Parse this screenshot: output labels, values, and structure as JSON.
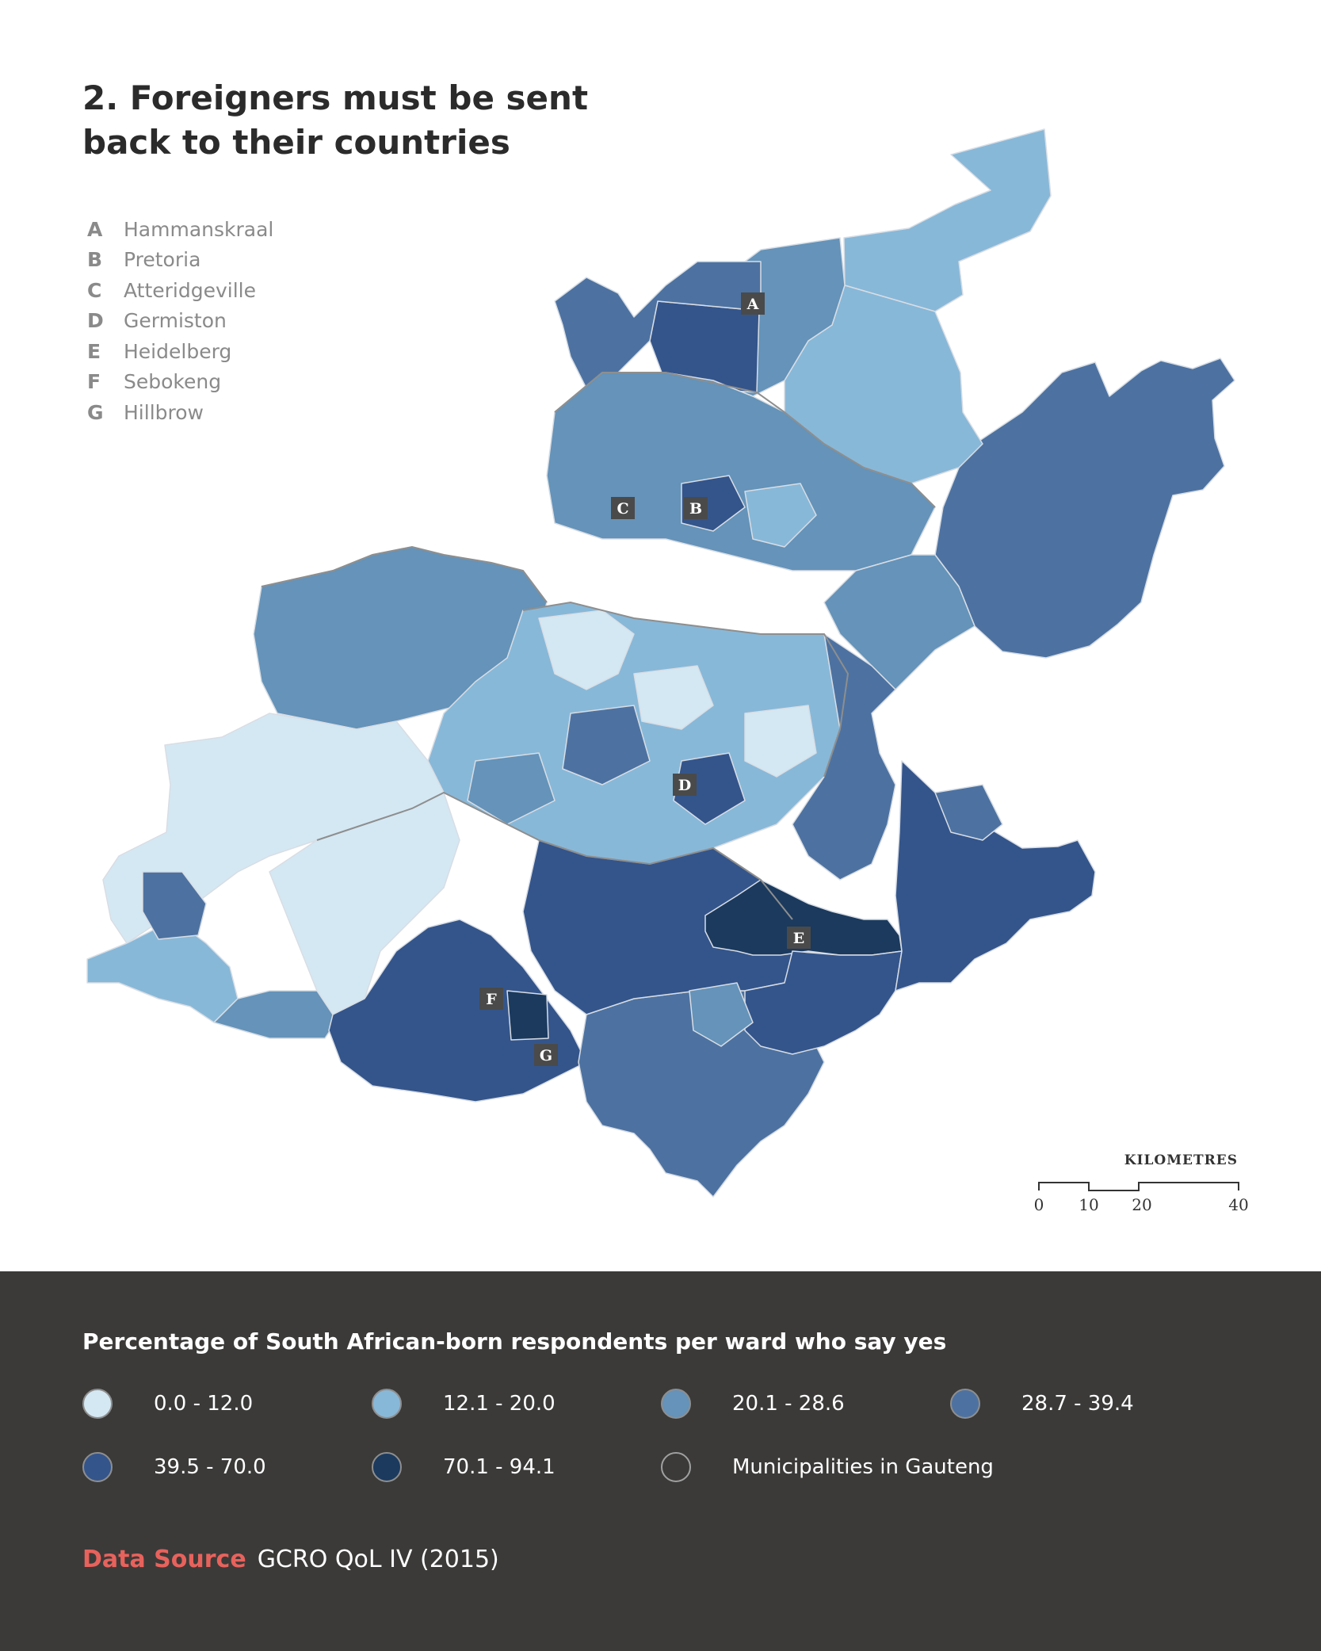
{
  "title": "2. Foreigners must be sent back to their countries",
  "places": [
    {
      "letter": "A",
      "name": "Hammanskraal"
    },
    {
      "letter": "B",
      "name": "Pretoria"
    },
    {
      "letter": "C",
      "name": "Atteridgeville"
    },
    {
      "letter": "D",
      "name": "Germiston"
    },
    {
      "letter": "E",
      "name": "Heidelberg"
    },
    {
      "letter": "F",
      "name": "Sebokeng"
    },
    {
      "letter": "G",
      "name": "Hillbrow"
    }
  ],
  "scale": {
    "title": "KILOMETRES",
    "ticks": [
      "0",
      "10",
      "20",
      "40"
    ]
  },
  "legend": {
    "title": "Percentage of South African-born respondents per ward who say yes",
    "classes": [
      {
        "label": "0.0 - 12.0",
        "color": "#d4e8f3"
      },
      {
        "label": "12.1 - 20.0",
        "color": "#88b8d8"
      },
      {
        "label": "20.1 - 28.6",
        "color": "#6593b9"
      },
      {
        "label": "28.7 - 39.4",
        "color": "#4d72a1"
      },
      {
        "label": "39.5 - 70.0",
        "color": "#34558b"
      },
      {
        "label": "70.1 - 94.1",
        "color": "#1b3a5e"
      }
    ],
    "boundary": {
      "label": "Municipalities in Gauteng"
    }
  },
  "source": {
    "label": "Data Source",
    "value": "GCRO QoL IV (2015)"
  }
}
